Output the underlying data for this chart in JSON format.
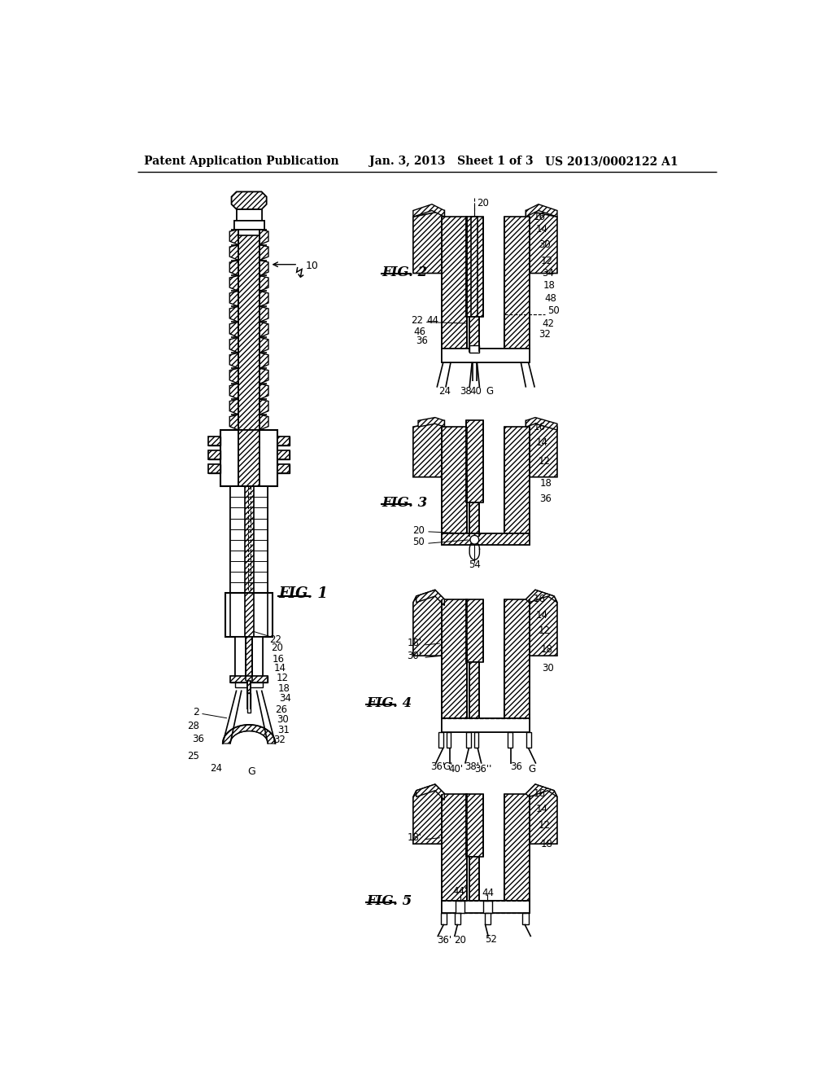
{
  "header_left": "Patent Application Publication",
  "header_center": "Jan. 3, 2013   Sheet 1 of 3",
  "header_right": "US 2013/0002122 A1",
  "background_color": "#ffffff",
  "line_color": "#000000"
}
